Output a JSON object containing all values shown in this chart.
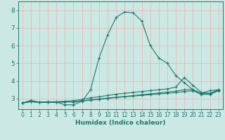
{
  "xlabel": "Humidex (Indice chaleur)",
  "bg_color": "#cce8e4",
  "plot_bg_color": "#cce8e4",
  "grid_color": "#e8b8b8",
  "line_color": "#1a7a6e",
  "tick_color": "#1a7a6e",
  "xlim": [
    -0.5,
    23.5
  ],
  "ylim": [
    2.4,
    8.5
  ],
  "xticks": [
    0,
    1,
    2,
    3,
    4,
    5,
    6,
    7,
    8,
    9,
    10,
    11,
    12,
    13,
    14,
    15,
    16,
    17,
    18,
    19,
    20,
    21,
    22,
    23
  ],
  "yticks": [
    3,
    4,
    5,
    6,
    7,
    8
  ],
  "curves": [
    {
      "x": [
        0,
        1,
        2,
        3,
        4,
        5,
        6,
        7,
        8,
        9,
        10,
        11,
        12,
        13,
        14,
        15,
        16,
        17,
        18,
        19,
        20,
        21,
        22,
        23
      ],
      "y": [
        2.75,
        2.9,
        2.8,
        2.8,
        2.8,
        2.65,
        2.65,
        2.85,
        3.5,
        5.3,
        6.6,
        7.6,
        7.9,
        7.85,
        7.4,
        6.0,
        5.3,
        5.0,
        4.3,
        3.9,
        3.5,
        3.3,
        3.45,
        3.5
      ]
    },
    {
      "x": [
        0,
        1,
        2,
        3,
        4,
        5,
        6,
        7,
        8,
        9,
        10,
        11,
        12,
        13,
        14,
        15,
        16,
        17,
        18,
        19,
        20,
        21,
        22,
        23
      ],
      "y": [
        2.75,
        2.85,
        2.8,
        2.82,
        2.82,
        2.85,
        2.88,
        2.95,
        3.05,
        3.1,
        3.18,
        3.25,
        3.3,
        3.35,
        3.4,
        3.45,
        3.5,
        3.55,
        3.65,
        4.2,
        3.75,
        3.35,
        3.3,
        3.5
      ]
    },
    {
      "x": [
        0,
        1,
        2,
        3,
        4,
        5,
        6,
        7,
        8,
        9,
        10,
        11,
        12,
        13,
        14,
        15,
        16,
        17,
        18,
        19,
        20,
        21,
        22,
        23
      ],
      "y": [
        2.75,
        2.83,
        2.79,
        2.79,
        2.79,
        2.82,
        2.82,
        2.88,
        2.93,
        2.98,
        3.03,
        3.08,
        3.12,
        3.17,
        3.22,
        3.27,
        3.32,
        3.37,
        3.42,
        3.5,
        3.52,
        3.28,
        3.28,
        3.48
      ]
    },
    {
      "x": [
        0,
        1,
        2,
        3,
        4,
        5,
        6,
        7,
        8,
        9,
        10,
        11,
        12,
        13,
        14,
        15,
        16,
        17,
        18,
        19,
        20,
        21,
        22,
        23
      ],
      "y": [
        2.75,
        2.82,
        2.78,
        2.78,
        2.78,
        2.81,
        2.81,
        2.86,
        2.91,
        2.96,
        3.01,
        3.06,
        3.1,
        3.14,
        3.18,
        3.22,
        3.26,
        3.3,
        3.34,
        3.4,
        3.44,
        3.24,
        3.24,
        3.44
      ]
    }
  ]
}
